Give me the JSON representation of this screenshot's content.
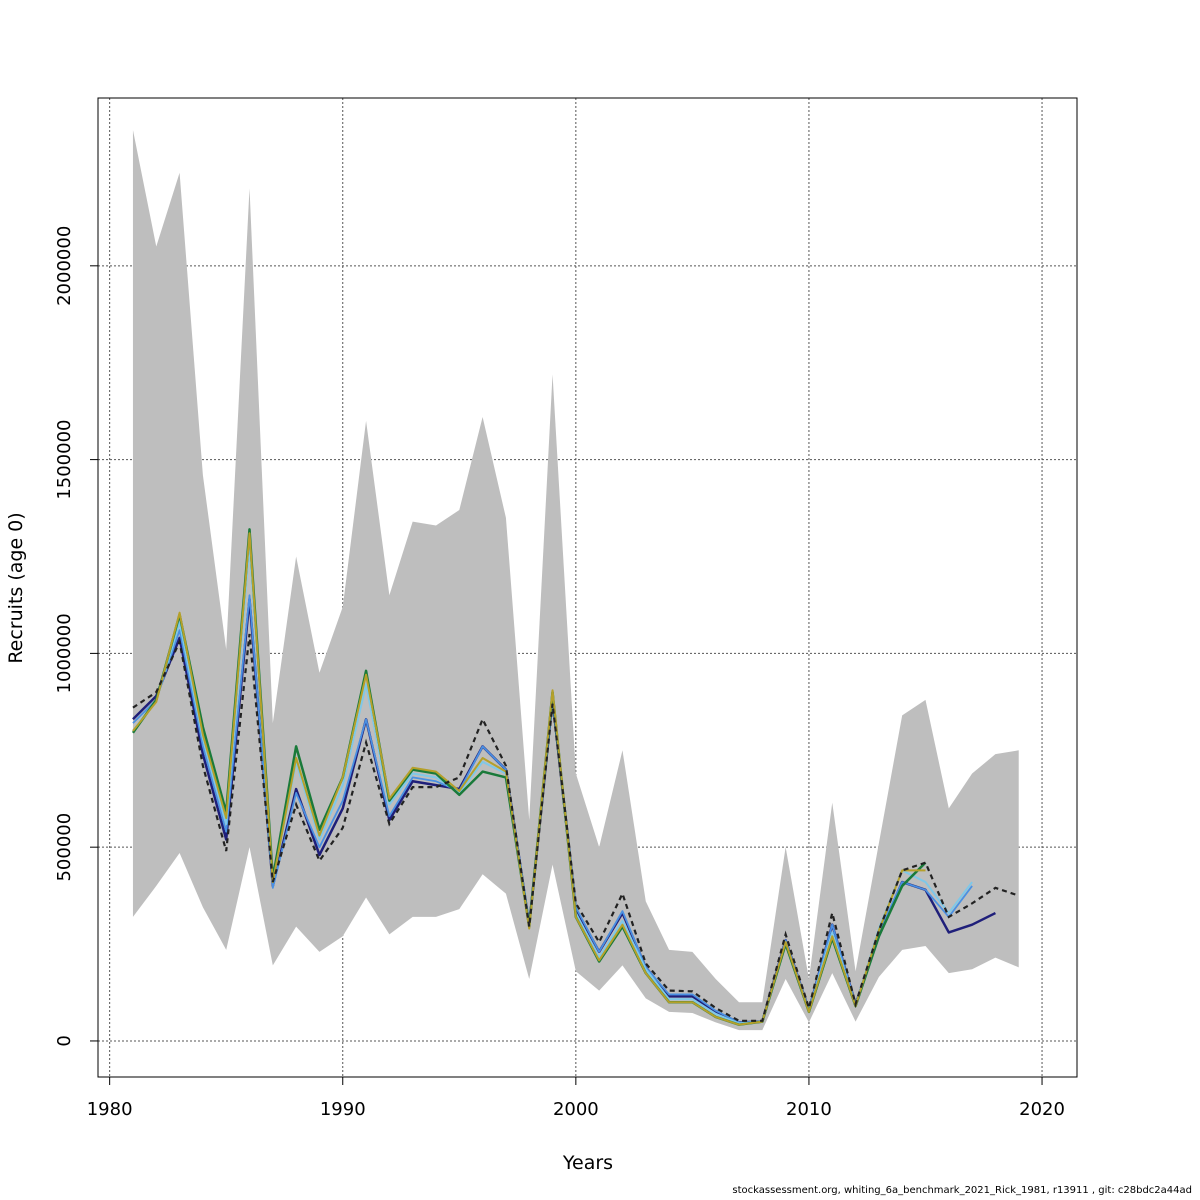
{
  "chart_data": {
    "type": "line",
    "xlabel": "Years",
    "ylabel": "Recruits (age 0)",
    "xlim": [
      1979.5,
      2021.5
    ],
    "ylim": [
      -93000,
      2433000
    ],
    "x_ticks": [
      1980,
      1990,
      2000,
      2010,
      2020
    ],
    "y_ticks": [
      0,
      500000,
      1000000,
      1500000,
      2000000
    ],
    "grid": true,
    "footer": "stockassessment.org, whiting_6a_benchmark_2021_Rick_1981, r13911 , git: c28bdc2a44ad",
    "band": {
      "color": "#bebebe",
      "x": [
        1981,
        1982,
        1983,
        1984,
        1985,
        1986,
        1987,
        1988,
        1989,
        1990,
        1991,
        1992,
        1993,
        1994,
        1995,
        1996,
        1997,
        1998,
        1999,
        2000,
        2001,
        2002,
        2003,
        2004,
        2005,
        2006,
        2007,
        2008,
        2009,
        2010,
        2011,
        2012,
        2013,
        2014,
        2015,
        2016,
        2017,
        2018,
        2019
      ],
      "upper": [
        2350000,
        2050000,
        2240000,
        1460000,
        1010000,
        2200000,
        820000,
        1250000,
        950000,
        1120000,
        1600000,
        1150000,
        1340000,
        1330000,
        1370000,
        1610000,
        1350000,
        570000,
        1720000,
        690000,
        500000,
        750000,
        360000,
        235000,
        230000,
        160000,
        100000,
        100000,
        500000,
        160000,
        615000,
        180000,
        510000,
        840000,
        880000,
        600000,
        690000,
        740000,
        750000
      ],
      "lower": [
        320000,
        400000,
        485000,
        345000,
        235000,
        500000,
        195000,
        295000,
        230000,
        270000,
        370000,
        275000,
        320000,
        320000,
        340000,
        430000,
        380000,
        160000,
        455000,
        180000,
        130000,
        195000,
        110000,
        75000,
        72000,
        48000,
        28000,
        28000,
        160000,
        48000,
        175000,
        50000,
        165000,
        235000,
        245000,
        175000,
        185000,
        215000,
        190000
      ]
    },
    "series": [
      {
        "color": "#1f1f7a",
        "width": 2.5,
        "dashed": false,
        "x": [
          1981,
          1982,
          1983,
          1984,
          1985,
          1986,
          1987,
          1988,
          1989,
          1990,
          1991,
          1992,
          1993,
          1994,
          1995,
          1996,
          1997,
          1998,
          1999,
          2000,
          2001,
          2002,
          2003,
          2004,
          2005,
          2006,
          2007,
          2008,
          2009,
          2010,
          2011,
          2012,
          2013,
          2014,
          2015,
          2016,
          2017,
          2018
        ],
        "values": [
          830000,
          890000,
          1040000,
          740000,
          520000,
          1140000,
          400000,
          650000,
          480000,
          600000,
          830000,
          570000,
          670000,
          660000,
          650000,
          760000,
          700000,
          300000,
          880000,
          340000,
          230000,
          330000,
          190000,
          115000,
          115000,
          75000,
          48000,
          50000,
          260000,
          80000,
          300000,
          95000,
          270000,
          410000,
          390000,
          280000,
          300000,
          330000
        ]
      },
      {
        "color": "#4a90e2",
        "width": 1.8,
        "dashed": false,
        "x": [
          1981,
          1982,
          1983,
          1984,
          1985,
          1986,
          1987,
          1988,
          1989,
          1990,
          1991,
          1992,
          1993,
          1994,
          1995,
          1996,
          1997,
          1998,
          1999,
          2000,
          2001,
          2002,
          2003,
          2004,
          2005,
          2006,
          2007,
          2008,
          2009,
          2010,
          2011,
          2012,
          2013,
          2014,
          2015,
          2016,
          2017
        ],
        "values": [
          820000,
          880000,
          1060000,
          760000,
          540000,
          1150000,
          395000,
          640000,
          500000,
          620000,
          830000,
          580000,
          680000,
          670000,
          645000,
          760000,
          700000,
          305000,
          880000,
          345000,
          230000,
          335000,
          190000,
          120000,
          120000,
          78000,
          48000,
          50000,
          260000,
          80000,
          300000,
          95000,
          280000,
          410000,
          390000,
          320000,
          400000
        ]
      },
      {
        "color": "#7fc8e8",
        "width": 2,
        "dashed": false,
        "x": [
          1981,
          1982,
          1983,
          1984,
          1985,
          1986,
          1987,
          1988,
          1989,
          1990,
          1991,
          1992,
          1993,
          1994,
          1995,
          1996,
          1997,
          1998,
          1999,
          2000,
          2001,
          2002,
          2003,
          2004,
          2005,
          2006,
          2007,
          2008,
          2009,
          2010,
          2011,
          2012,
          2013,
          2014,
          2015,
          2016,
          2017
        ],
        "values": [
          800000,
          880000,
          1080000,
          780000,
          560000,
          1280000,
          410000,
          720000,
          520000,
          660000,
          920000,
          610000,
          690000,
          680000,
          640000,
          720000,
          690000,
          300000,
          890000,
          330000,
          215000,
          310000,
          185000,
          108000,
          108000,
          70000,
          45000,
          50000,
          255000,
          78000,
          280000,
          92000,
          290000,
          440000,
          410000,
          330000,
          410000
        ]
      },
      {
        "color": "#1a7a3a",
        "width": 2.5,
        "dashed": false,
        "x": [
          1981,
          1982,
          1983,
          1984,
          1985,
          1986,
          1987,
          1988,
          1989,
          1990,
          1991,
          1992,
          1993,
          1994,
          1995,
          1996,
          1997,
          1998,
          1999,
          2000,
          2001,
          2002,
          2003,
          2004,
          2005,
          2006,
          2007,
          2008,
          2009,
          2010,
          2011,
          2012,
          2013,
          2014,
          2015
        ],
        "values": [
          795000,
          880000,
          1100000,
          810000,
          590000,
          1320000,
          420000,
          760000,
          545000,
          680000,
          955000,
          620000,
          700000,
          690000,
          635000,
          695000,
          680000,
          295000,
          900000,
          320000,
          205000,
          295000,
          175000,
          100000,
          100000,
          62000,
          42000,
          50000,
          250000,
          75000,
          265000,
          90000,
          270000,
          400000,
          460000
        ]
      },
      {
        "color": "#b5a02a",
        "width": 2,
        "dashed": false,
        "x": [
          1981,
          1982,
          1983,
          1984,
          1985,
          1986,
          1987,
          1988,
          1989,
          1990,
          1991,
          1992,
          1993,
          1994,
          1995,
          1996,
          1997,
          1998,
          1999,
          2000,
          2001,
          2002,
          2003,
          2004,
          2005,
          2006,
          2007,
          2008,
          2009,
          2010,
          2011,
          2012,
          2013,
          2014,
          2015
        ],
        "values": [
          800000,
          875000,
          1105000,
          790000,
          575000,
          1310000,
          410000,
          730000,
          530000,
          680000,
          945000,
          625000,
          705000,
          695000,
          645000,
          730000,
          695000,
          290000,
          905000,
          320000,
          208000,
          300000,
          175000,
          100000,
          100000,
          62000,
          42000,
          50000,
          255000,
          75000,
          270000,
          90000,
          285000,
          440000,
          440000
        ]
      },
      {
        "color": "#222222",
        "width": 2.2,
        "dashed": true,
        "x": [
          1981,
          1982,
          1983,
          1984,
          1985,
          1986,
          1987,
          1988,
          1989,
          1990,
          1991,
          1992,
          1993,
          1994,
          1995,
          1996,
          1997,
          1998,
          1999,
          2000,
          2001,
          2002,
          2003,
          2004,
          2005,
          2006,
          2007,
          2008,
          2009,
          2010,
          2011,
          2012,
          2013,
          2014,
          2015,
          2016,
          2017,
          2018,
          2019
        ],
        "values": [
          860000,
          900000,
          1030000,
          710000,
          490000,
          1050000,
          410000,
          610000,
          465000,
          550000,
          770000,
          560000,
          655000,
          655000,
          680000,
          830000,
          710000,
          295000,
          870000,
          355000,
          255000,
          380000,
          200000,
          130000,
          128000,
          85000,
          52000,
          52000,
          275000,
          85000,
          330000,
          95000,
          285000,
          440000,
          460000,
          320000,
          355000,
          395000,
          375000
        ]
      }
    ]
  }
}
